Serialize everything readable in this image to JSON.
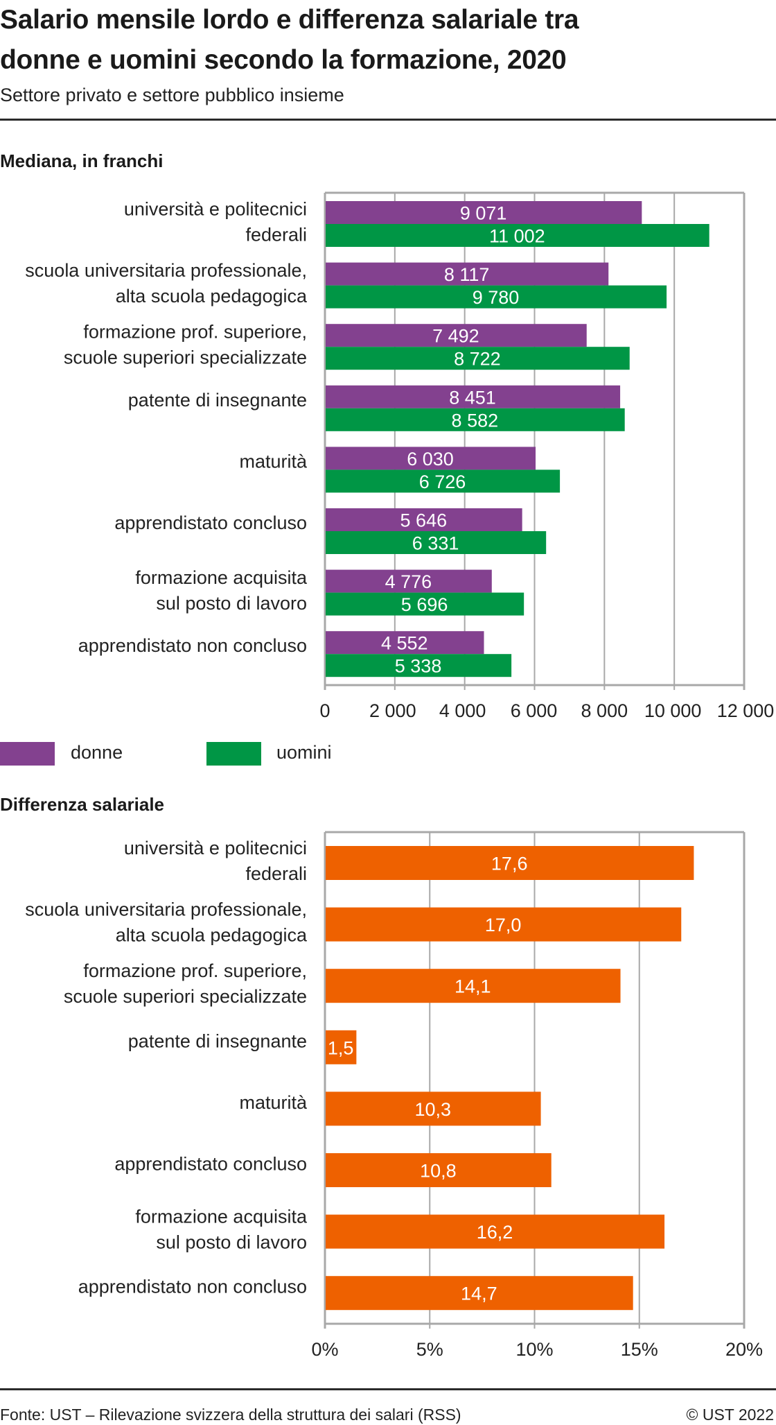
{
  "header": {
    "title_line1": "Salario mensile lordo e differenza salariale tra",
    "title_line2": "donne e uomini secondo la formazione, 2020",
    "subtitle": "Settore privato e settore pubblico insieme"
  },
  "colors": {
    "donne": "#83418F",
    "uomini": "#009645",
    "gap": "#EE6100",
    "grid": "#A8A8A8",
    "rule": "#2B2B2B"
  },
  "chart_data": [
    {
      "type": "bar",
      "orientation": "horizontal",
      "title": "Mediana, in franchi",
      "xlabel": "",
      "ylabel": "",
      "categories": [
        [
          "università e politecnici ",
          "federali"
        ],
        [
          "scuola universitaria professionale,",
          "alta scuola pedagogica"
        ],
        [
          "formazione prof. superiore,",
          "scuole superiori specializzate"
        ],
        [
          "patente di insegnante"
        ],
        [
          "maturità"
        ],
        [
          "apprendistato concluso"
        ],
        [
          "formazione acquisita",
          "sul posto di lavoro"
        ],
        [
          "apprendistato non concluso"
        ]
      ],
      "series": [
        {
          "name": "donne",
          "color": "#83418F",
          "values": [
            9071,
            8117,
            7492,
            8451,
            6030,
            5646,
            4776,
            4552
          ],
          "labels": [
            "9 071",
            "8 117",
            "7 492",
            "8 451",
            "6 030",
            "5 646",
            "4 776",
            "4 552"
          ]
        },
        {
          "name": "uomini",
          "color": "#009645",
          "values": [
            11002,
            9780,
            8722,
            8582,
            6726,
            6331,
            5696,
            5338
          ],
          "labels": [
            "11 002",
            "9 780",
            "8 722",
            "8 582",
            "6 726",
            "6 331",
            "5 696",
            "5 338"
          ]
        }
      ],
      "xlim": [
        0,
        12000
      ],
      "xticks": [
        0,
        2000,
        4000,
        6000,
        8000,
        10000,
        12000
      ],
      "xtick_labels": [
        "0",
        "2 000",
        "4 000",
        "6 000",
        "8 000",
        "10 000",
        "12 000"
      ],
      "grid": true,
      "legend": {
        "placement": "bottom-left",
        "entries": [
          {
            "label": "donne",
            "color": "#83418F"
          },
          {
            "label": "uomini",
            "color": "#009645"
          }
        ]
      }
    },
    {
      "type": "bar",
      "orientation": "horizontal",
      "title": "Differenza salariale",
      "xlabel": "",
      "ylabel": "",
      "categories": [
        [
          "università e politecnici ",
          "federali"
        ],
        [
          "scuola universitaria professionale,",
          "alta scuola pedagogica"
        ],
        [
          "formazione prof. superiore,",
          "scuole superiori specializzate"
        ],
        [
          "patente di insegnante"
        ],
        [
          "maturità"
        ],
        [
          "apprendistato concluso"
        ],
        [
          "formazione acquisita",
          "sul posto di lavoro"
        ],
        [
          "apprendistato non concluso"
        ]
      ],
      "series": [
        {
          "name": "Differenza salariale",
          "color": "#EE6100",
          "values": [
            17.6,
            17.0,
            14.1,
            1.5,
            10.3,
            10.8,
            16.2,
            14.7
          ],
          "labels": [
            "17,6",
            "17,0",
            "14,1",
            "1,5",
            "10,3",
            "10,8",
            "16,2",
            "14,7"
          ]
        }
      ],
      "xlim": [
        0,
        20
      ],
      "xticks": [
        0,
        5,
        10,
        15,
        20
      ],
      "xtick_labels": [
        "0%",
        "5%",
        "10%",
        "15%",
        "20%"
      ],
      "grid": true
    }
  ],
  "footer": {
    "source": "Fonte: UST – Rilevazione svizzera della struttura dei salari (RSS)",
    "copyright": "© UST 2022"
  }
}
